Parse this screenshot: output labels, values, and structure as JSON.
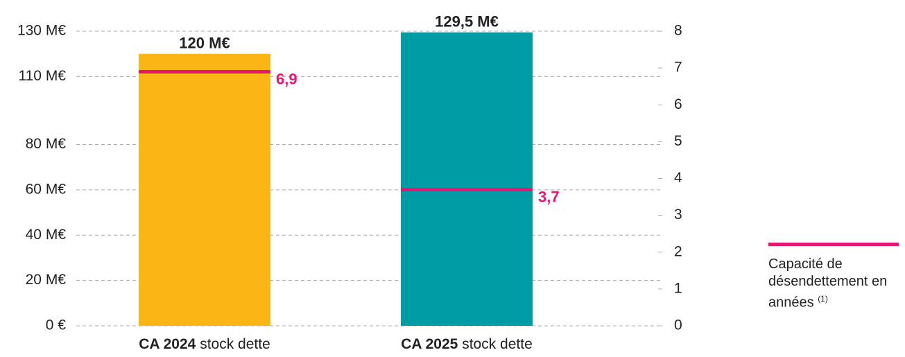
{
  "chart_data": {
    "type": "bar",
    "categories": [
      "CA 2024",
      "CA 2025"
    ],
    "category_suffix": "stock dette",
    "values": [
      120,
      129.5
    ],
    "value_labels": [
      "120 M€",
      "129,5 M€"
    ],
    "colors": [
      "#fbb615",
      "#009ca6"
    ],
    "ylim": [
      0,
      130
    ],
    "yticks": [
      {
        "value": 0,
        "label": "0 €"
      },
      {
        "value": 20,
        "label": "20 M€"
      },
      {
        "value": 40,
        "label": "40 M€"
      },
      {
        "value": 60,
        "label": "60 M€"
      },
      {
        "value": 80,
        "label": "80 M€"
      },
      {
        "value": 110,
        "label": "110 M€"
      },
      {
        "value": 130,
        "label": "130 M€"
      }
    ],
    "y2lim": [
      0,
      8
    ],
    "y2ticks": [
      0,
      1,
      2,
      3,
      4,
      5,
      6,
      7,
      8
    ],
    "grid": true,
    "line_series": {
      "name": "Capacité de désendettement en années",
      "footnote": "(1)",
      "color": "#e6176f",
      "axis": "y2",
      "values": [
        6.9,
        3.7
      ],
      "value_labels": [
        "6,9",
        "3,7"
      ]
    }
  }
}
